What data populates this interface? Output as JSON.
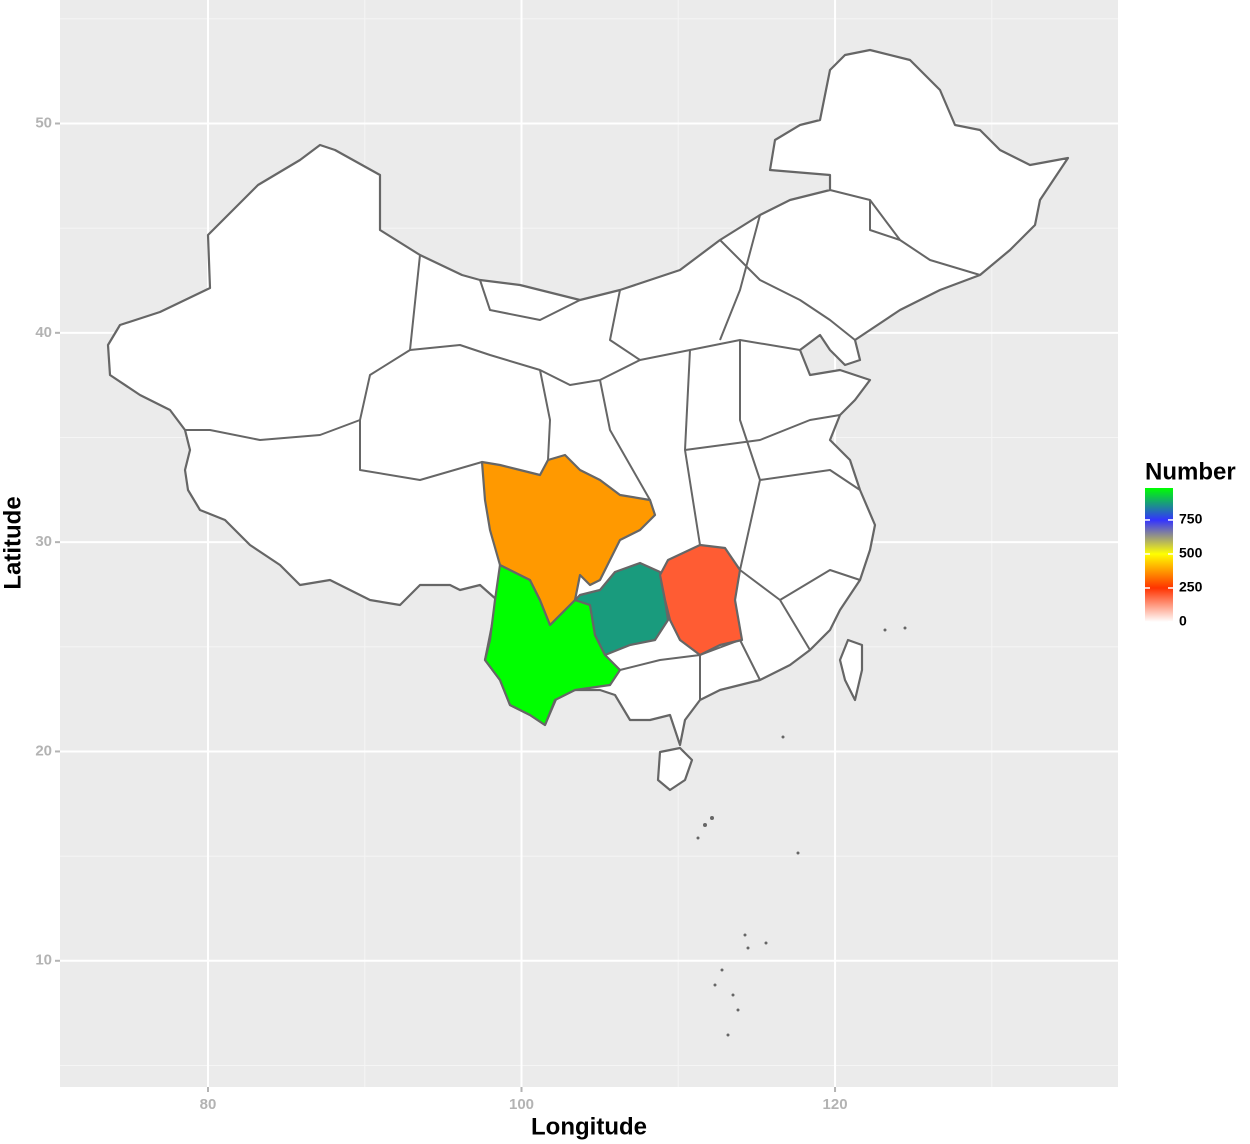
{
  "chart_data": {
    "type": "choropleth",
    "xlabel": "Longitude",
    "ylabel": "Latitude",
    "xlim": [
      70.56,
      138.05
    ],
    "xticks": [
      80,
      100,
      120
    ],
    "minor_xgrid": [
      90,
      110,
      130
    ],
    "ylim": [
      3.97,
      55.9
    ],
    "yticks": [
      10,
      20,
      30,
      40,
      50
    ],
    "minor_ygrid": [
      5,
      15,
      25,
      35,
      45,
      55
    ],
    "grid": true,
    "legend_title": "Number",
    "legend_lim": [
      0,
      985
    ],
    "legend_ticks": [
      0,
      250,
      500,
      750
    ],
    "color_stops": [
      {
        "value": 0,
        "color": "#ffffff"
      },
      {
        "value": 250,
        "color": "#ff3300"
      },
      {
        "value": 500,
        "color": "#ffff00"
      },
      {
        "value": 750,
        "color": "#3333ff"
      },
      {
        "value": 985,
        "color": "#00ff00"
      }
    ],
    "regions": [
      {
        "value": 985
      },
      {
        "value": 375
      },
      {
        "value": 870
      },
      {
        "value": 200
      }
    ]
  }
}
